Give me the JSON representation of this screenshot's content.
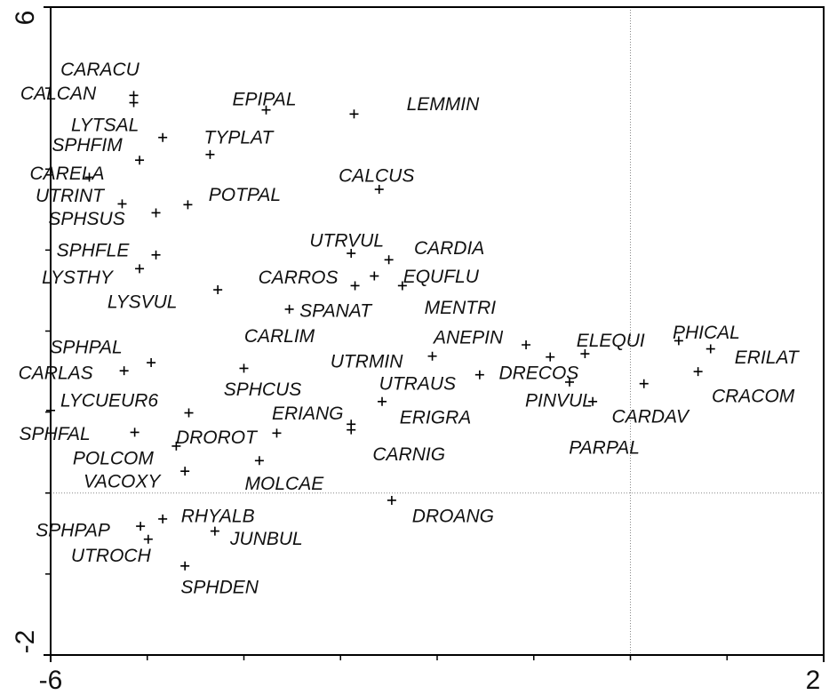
{
  "chart_data": {
    "type": "scatter",
    "labels": [
      "CARACU",
      "CALCAN",
      "EPIPAL",
      "LEMMIN",
      "LYTSAL",
      "TYPLAT",
      "SPHFIM",
      "CARELA",
      "UTRINT",
      "SPHSUS",
      "POTPAL",
      "CALCUS",
      "UTRVUL",
      "CARDIA",
      "CARROS",
      "EQUFLU",
      "MENTRI",
      "SPHFLE",
      "LYSTHY",
      "LYSVUL",
      "SPANAT",
      "ANEPIN",
      "CARLIM",
      "SPHPAL",
      "CARLAS",
      "UTRMIN",
      "ELEQUI",
      "DRECOS",
      "PHICAL",
      "ERILAT",
      "CRACOM",
      "CARDAV",
      "PINVUL",
      "UTRAUS",
      "ERIGRA",
      "PARPAL",
      "SPHCUS",
      "LYCUEUR6",
      "SPHFAL",
      "ERIANG",
      "CARNIG",
      "DROROT",
      "POLCOM",
      "VACOXY",
      "MOLCAE",
      "DROANG",
      "RHYALB",
      "SPHPAP",
      "JUNBUL",
      "UTROCH",
      "SPHDEN"
    ],
    "x": [
      -5.14,
      -5.14,
      -3.77,
      -2.86,
      -4.84,
      -4.35,
      -5.08,
      -5.6,
      -5.26,
      -4.91,
      -4.58,
      -2.6,
      -2.89,
      -2.5,
      -2.85,
      -2.65,
      -2.36,
      -4.91,
      -5.08,
      -4.27,
      -3.53,
      -1.08,
      -4.0,
      -4.96,
      -5.24,
      -2.05,
      -0.83,
      -0.47,
      0.5,
      0.83,
      0.7,
      0.14,
      -0.63,
      -1.56,
      -2.57,
      -0.39,
      -4.57,
      -6.0,
      -5.13,
      -2.89,
      -2.89,
      -3.66,
      -4.7,
      -4.61,
      -3.84,
      -2.47,
      -4.84,
      -5.07,
      -4.3,
      -4.99,
      -4.61
    ],
    "y": [
      4.91,
      4.82,
      4.73,
      4.68,
      4.39,
      4.18,
      4.11,
      3.9,
      3.57,
      3.46,
      3.56,
      3.75,
      2.96,
      2.88,
      2.56,
      2.68,
      2.56,
      2.94,
      2.77,
      2.51,
      2.27,
      1.83,
      1.54,
      1.61,
      1.51,
      1.69,
      1.68,
      1.72,
      1.88,
      1.78,
      1.5,
      1.35,
      1.37,
      1.46,
      1.13,
      1.13,
      0.99,
      1.02,
      0.75,
      0.85,
      0.78,
      0.74,
      0.58,
      0.27,
      0.4,
      -0.09,
      -0.32,
      -0.41,
      -0.47,
      -0.57,
      -0.9
    ],
    "color": "#000000",
    "xlim": [
      -6,
      2
    ],
    "ylim": [
      -2,
      6
    ],
    "xticks": [
      -6,
      2
    ],
    "yticks": [
      -2,
      6
    ]
  }
}
